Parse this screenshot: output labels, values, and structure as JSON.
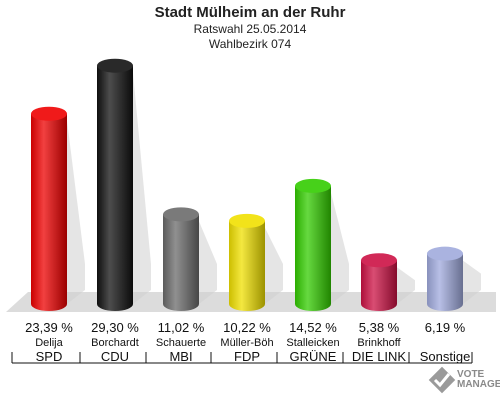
{
  "chart_data": {
    "type": "bar",
    "title": "Stadt Mülheim an der Ruhr",
    "subtitle_1": "Ratswahl 25.05.2014",
    "subtitle_2": "Wahlbezirk 074",
    "categories": [
      "SPD",
      "CDU",
      "MBI",
      "FDP",
      "GRÜNE",
      "DIE LINKE",
      "Sonstige"
    ],
    "candidates": [
      "Delija",
      "Borchardt",
      "Schauerte",
      "Müller-Böh",
      "Stalleicken",
      "Brinkhoff",
      ""
    ],
    "party_labels": [
      "SPD",
      "CDU",
      "MBI",
      "FDP",
      "GRÜNE",
      "DIE LINK",
      "Sonstige"
    ],
    "values": [
      23.39,
      29.3,
      11.02,
      10.22,
      14.52,
      5.38,
      6.19
    ],
    "value_labels": [
      "23,39 %",
      "29,30 %",
      "11,02 %",
      "10,22 %",
      "14,52 %",
      "5,38 %",
      "6,19 %"
    ],
    "colors": [
      "#ee0000",
      "#111111",
      "#6b6b6b",
      "#f0e000",
      "#33cc00",
      "#cc1144",
      "#a0aadd"
    ],
    "ylim": [
      0,
      30
    ],
    "grid": false
  },
  "logo": {
    "line1": "VOTE",
    "line2": "MANAGER",
    "icon": "vote-manager-logo-icon"
  }
}
